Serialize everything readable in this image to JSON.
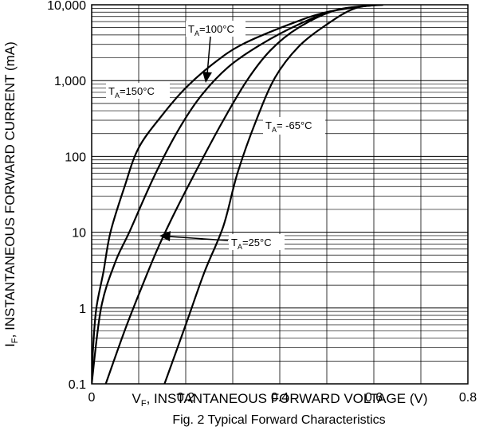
{
  "chart_data": {
    "type": "line",
    "title": "",
    "caption": "Fig. 2 Typical Forward Characteristics",
    "xlabel": {
      "main": "V",
      "sub": "F",
      "rest": ", INSTANTANEOUS FORWARD VOLTAGE (V)"
    },
    "ylabel": {
      "main": "I",
      "sub": "F",
      "rest": ", INSTANTANEOUS FORWARD CURRENT (mA)"
    },
    "xlim": [
      0,
      0.8
    ],
    "ylim": [
      0.1,
      10000
    ],
    "yscale": "log",
    "grid": true,
    "x_ticks": [
      {
        "value": 0,
        "label": "0"
      },
      {
        "value": 0.2,
        "label": "0.2"
      },
      {
        "value": 0.4,
        "label": "0.4"
      },
      {
        "value": 0.6,
        "label": "0.6"
      },
      {
        "value": 0.8,
        "label": "0.8"
      }
    ],
    "y_ticks": [
      {
        "value": 0.1,
        "label": "0.1"
      },
      {
        "value": 1,
        "label": "1"
      },
      {
        "value": 10,
        "label": "10"
      },
      {
        "value": 100,
        "label": "100"
      },
      {
        "value": 1000,
        "label": "1,000"
      },
      {
        "value": 10000,
        "label": "10,000"
      }
    ],
    "series": [
      {
        "key": "t150",
        "points": [
          [
            0.0,
            0.1
          ],
          [
            0.003,
            0.3
          ],
          [
            0.01,
            1
          ],
          [
            0.025,
            3
          ],
          [
            0.04,
            10
          ],
          [
            0.07,
            40
          ],
          [
            0.1,
            130
          ],
          [
            0.15,
            350
          ],
          [
            0.2,
            800
          ],
          [
            0.26,
            1700
          ],
          [
            0.32,
            3000
          ],
          [
            0.42,
            5500
          ],
          [
            0.5,
            8000
          ],
          [
            0.6,
            12000
          ]
        ]
      },
      {
        "key": "t100",
        "points": [
          [
            0.0,
            0.1
          ],
          [
            0.02,
            1
          ],
          [
            0.05,
            4
          ],
          [
            0.08,
            10
          ],
          [
            0.13,
            50
          ],
          [
            0.18,
            200
          ],
          [
            0.23,
            600
          ],
          [
            0.29,
            1500
          ],
          [
            0.36,
            3000
          ],
          [
            0.44,
            5500
          ],
          [
            0.52,
            8500
          ],
          [
            0.61,
            12000
          ]
        ]
      },
      {
        "key": "t25",
        "points": [
          [
            0.03,
            0.1
          ],
          [
            0.07,
            0.5
          ],
          [
            0.1,
            1.5
          ],
          [
            0.14,
            6
          ],
          [
            0.18,
            20
          ],
          [
            0.23,
            80
          ],
          [
            0.28,
            300
          ],
          [
            0.33,
            1000
          ],
          [
            0.38,
            2500
          ],
          [
            0.44,
            5000
          ],
          [
            0.52,
            8500
          ],
          [
            0.61,
            12000
          ]
        ]
      },
      {
        "key": "tm65",
        "points": [
          [
            0.155,
            0.1
          ],
          [
            0.2,
            0.6
          ],
          [
            0.24,
            3
          ],
          [
            0.28,
            12
          ],
          [
            0.31,
            60
          ],
          [
            0.35,
            300
          ],
          [
            0.39,
            1100
          ],
          [
            0.44,
            2800
          ],
          [
            0.5,
            5500
          ],
          [
            0.56,
            9000
          ],
          [
            0.62,
            12000
          ]
        ]
      }
    ],
    "annotations": [
      {
        "id": "t100",
        "main": "T",
        "sub": "A",
        "rest": "=100°C"
      },
      {
        "id": "t150",
        "main": "T",
        "sub": "A",
        "rest": "=150°C"
      },
      {
        "id": "tm65",
        "main": "T",
        "sub": "A",
        "rest": "= -65°C"
      },
      {
        "id": "t25",
        "main": "T",
        "sub": "A",
        "rest": "=25°C"
      }
    ]
  }
}
